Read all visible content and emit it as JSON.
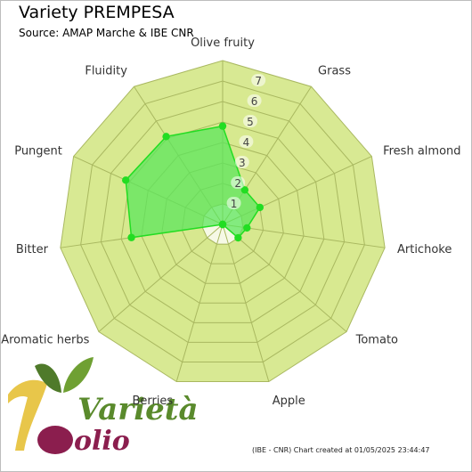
{
  "title": "Variety PREMPESA",
  "subtitle": "Source: AMAP Marche & IBE CNR",
  "footer": "(IBE - CNR) Chart created at 01/05/2025 23:44:47",
  "logo": {
    "line1": "Varietà",
    "line2": "olio"
  },
  "colors": {
    "ring_fill": "#d7e88f",
    "ring_stroke": "#a9b860",
    "series_fill": "#5ce65c",
    "series_stroke": "#22dd22",
    "point": "#22dd22"
  },
  "chart_data": {
    "type": "radar",
    "title": "Variety PREMPESA",
    "subtitle": "Source: AMAP Marche & IBE CNR",
    "axes": [
      "Olive fruity",
      "Grass",
      "Fresh almond",
      "Artichoke",
      "Tomato",
      "Apple",
      "Berries",
      "Aromatic herbs",
      "Bitter",
      "Pungent",
      "Fluidity"
    ],
    "rlim": [
      0,
      8
    ],
    "ticks": [
      1,
      2,
      3,
      4,
      5,
      6,
      7
    ],
    "tick_labels": [
      "1",
      "2",
      "3",
      "4",
      "5",
      "6",
      "7"
    ],
    "grid": true,
    "series": [
      {
        "values": [
          4.8,
          2.0,
          2.0,
          1.2,
          1.0,
          0.0,
          0.0,
          0.0,
          4.5,
          5.2,
          5.1
        ]
      }
    ]
  }
}
